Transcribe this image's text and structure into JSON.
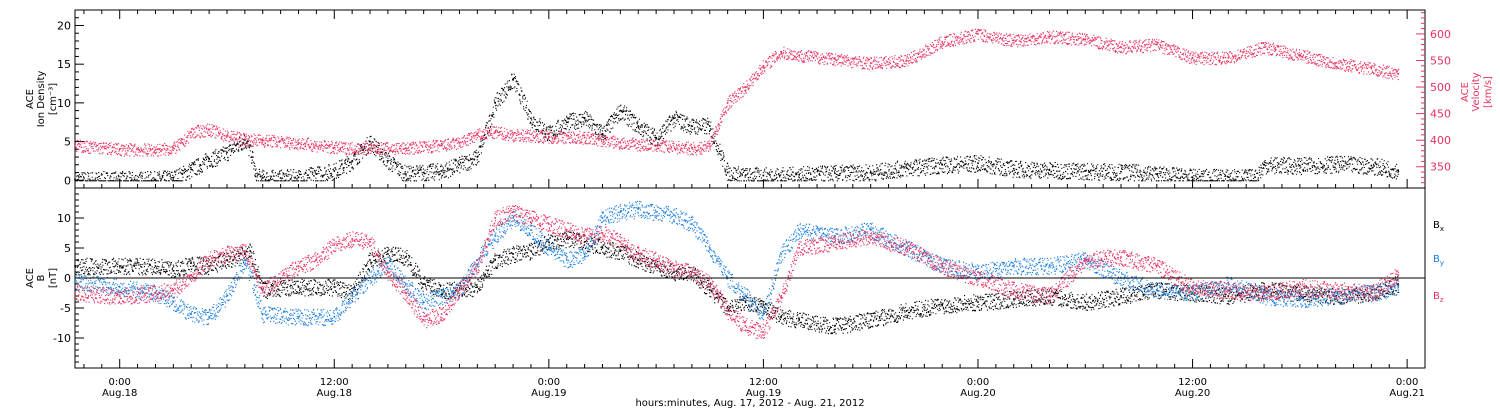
{
  "colors": {
    "black": "#000000",
    "pink": "#e8315f",
    "blue": "#1a7fe0"
  },
  "time_axis": {
    "ticks": [
      {
        "hour": 0,
        "top": "0:00",
        "bottom": "Aug.18"
      },
      {
        "hour": 12,
        "top": "12:00",
        "bottom": "Aug.18"
      },
      {
        "hour": 24,
        "top": "0:00",
        "bottom": "Aug.19"
      },
      {
        "hour": 36,
        "top": "12:00",
        "bottom": "Aug.19"
      },
      {
        "hour": 48,
        "top": "0:00",
        "bottom": "Aug.20"
      },
      {
        "hour": 60,
        "top": "12:00",
        "bottom": "Aug.20"
      },
      {
        "hour": 72,
        "top": "0:00",
        "bottom": "Aug.21"
      }
    ],
    "caption": "hours:minutes, Aug. 17, 2012 - Aug. 21, 2012"
  },
  "chart_data": [
    {
      "type": "scatter",
      "panel": "plasma",
      "xlim_hours": [
        -2.5,
        73
      ],
      "ylabel_left": {
        "line1": "ACE",
        "line2": "Ion Density",
        "line3": "[cm⁻³]"
      },
      "ylabel_right": {
        "line1": "ACE",
        "line2": "Velocity",
        "line3": "[km/s]"
      },
      "y_left": {
        "ylim": [
          -1,
          22
        ],
        "ticks": [
          0,
          5,
          10,
          15,
          20
        ]
      },
      "y_right": {
        "ylim": [
          310,
          645
        ],
        "ticks": [
          350,
          400,
          450,
          500,
          550,
          600
        ]
      },
      "series": [
        {
          "name": "Ion Density",
          "axis": "left",
          "color": "#000000",
          "x": [
            -2.5,
            0,
            2,
            3,
            3.5,
            4,
            4.5,
            5,
            5.5,
            6,
            6.5,
            7,
            7.4,
            7.6,
            8,
            9,
            10,
            11,
            12,
            13,
            14,
            15,
            16,
            17,
            18,
            19,
            20,
            21,
            22,
            23,
            24,
            25,
            26,
            27,
            28,
            29,
            30,
            31,
            32,
            33,
            34,
            35,
            36,
            38,
            40,
            42,
            44,
            46,
            48,
            50,
            52,
            54,
            56,
            58,
            60,
            62,
            63.5,
            64,
            66,
            68,
            70,
            71.5
          ],
          "y": [
            0.1,
            0.1,
            0.1,
            0.3,
            0.8,
            1.4,
            2.0,
            2.8,
            3.0,
            3.6,
            4.5,
            5.2,
            3.0,
            0.5,
            0.3,
            0.3,
            0.4,
            0.8,
            1.2,
            2.5,
            5.0,
            2.5,
            0.8,
            1.0,
            1.2,
            2.0,
            3.0,
            10.0,
            13.0,
            8.0,
            6.0,
            7.5,
            8.0,
            6.0,
            9.0,
            7.0,
            5.5,
            8.0,
            7.0,
            7.0,
            1.0,
            0.6,
            0.6,
            0.7,
            0.9,
            1.0,
            1.6,
            2.0,
            2.2,
            1.5,
            1.3,
            1.2,
            1.1,
            0.8,
            0.4,
            0.4,
            0.4,
            2.0,
            1.9,
            2.1,
            1.9,
            1.3
          ]
        },
        {
          "name": "Velocity",
          "axis": "right",
          "color": "#e8315f",
          "x": [
            -2.5,
            0,
            2,
            3,
            3.5,
            4,
            5,
            6,
            7,
            8,
            10,
            12,
            14,
            16,
            18,
            19,
            20,
            21,
            22,
            24,
            26,
            28,
            30,
            32,
            32.5,
            33,
            33.5,
            34,
            35,
            36,
            37,
            38,
            40,
            42,
            44,
            46,
            48,
            50,
            52,
            54,
            56,
            58,
            60,
            62,
            64,
            66,
            68,
            70,
            71.5
          ],
          "y": [
            390,
            383,
            382,
            385,
            395,
            415,
            420,
            408,
            402,
            400,
            395,
            386,
            385,
            385,
            390,
            395,
            410,
            415,
            410,
            407,
            405,
            395,
            390,
            385,
            385,
            393,
            430,
            470,
            500,
            540,
            565,
            560,
            553,
            545,
            550,
            585,
            600,
            588,
            595,
            590,
            575,
            580,
            555,
            555,
            575,
            560,
            545,
            535,
            525
          ]
        }
      ]
    },
    {
      "type": "scatter",
      "panel": "magnetic",
      "xlim_hours": [
        -2.5,
        73
      ],
      "ylabel_left": {
        "line1": "ACE",
        "line2": "B",
        "line3": "[nT]"
      },
      "ylim": [
        -15,
        15
      ],
      "yticks": [
        -10,
        -5,
        0,
        5,
        10
      ],
      "legend_placement": "right",
      "series": [
        {
          "name": "B",
          "subscript": "x",
          "color": "#000000",
          "x": [
            -2.5,
            0,
            2,
            3,
            4,
            5,
            6,
            7,
            7.3,
            8,
            10,
            12,
            13,
            14,
            15,
            16,
            17,
            18,
            19,
            20,
            21,
            22,
            23,
            24,
            25,
            26,
            27,
            28,
            29,
            30,
            31,
            32,
            33,
            34,
            35,
            36,
            37,
            38,
            40,
            42,
            44,
            46,
            48,
            50,
            52,
            54,
            56,
            58,
            60,
            62,
            64,
            66,
            68,
            70,
            71.5
          ],
          "y": [
            2,
            2,
            2,
            1.2,
            2.5,
            2.0,
            3.0,
            4.0,
            4.5,
            -2,
            -1.5,
            -1.5,
            -2.5,
            3.0,
            4.0,
            3.5,
            -1.0,
            -2.0,
            -2.0,
            -1.5,
            3.0,
            4.0,
            4.5,
            6.0,
            6.5,
            6.0,
            5.0,
            4.5,
            3.0,
            2.0,
            1.0,
            1.0,
            -2.0,
            -5.0,
            -4.0,
            -4.5,
            -6.5,
            -7.0,
            -8.0,
            -7.0,
            -5.5,
            -4.5,
            -4.0,
            -3.5,
            -3.0,
            -4.0,
            -3.0,
            -2.0,
            -2.5,
            -3.0,
            -2.0,
            -2.5,
            -3.0,
            -2.5,
            -1.0
          ]
        },
        {
          "name": "B",
          "subscript": "y",
          "color": "#1a7fe0",
          "x": [
            -2.5,
            0,
            2,
            3,
            4,
            5,
            6,
            7,
            8,
            10,
            12,
            13,
            14,
            15,
            16,
            17,
            18,
            19,
            20,
            21,
            22,
            23,
            24,
            25,
            26,
            27,
            28,
            29,
            30,
            31,
            32,
            33,
            34,
            35,
            36,
            37,
            38,
            40,
            42,
            44,
            46,
            48,
            50,
            52,
            54,
            56,
            58,
            60,
            62,
            64,
            66,
            68,
            70,
            71.5
          ],
          "y": [
            -0.5,
            -1.5,
            -2.5,
            -4.0,
            -6.0,
            -6.5,
            -3.0,
            3.0,
            -6.0,
            -6.5,
            -6.5,
            -3.0,
            0.0,
            2.5,
            -1.0,
            -4.0,
            -3.0,
            -2.0,
            3.0,
            7.0,
            10.0,
            8.0,
            5.0,
            3.0,
            4.0,
            10.0,
            11.0,
            11.5,
            11.0,
            10.5,
            9.0,
            5.0,
            0.0,
            -3.0,
            -6.0,
            4.0,
            8.0,
            7.0,
            8.0,
            5.0,
            2.0,
            1.0,
            2.0,
            2.0,
            3.0,
            0.0,
            -2.0,
            -2.5,
            -1.0,
            -3.0,
            -3.5,
            -3.0,
            -2.5,
            -1.5
          ]
        },
        {
          "name": "B",
          "subscript": "z",
          "color": "#e8315f",
          "x": [
            -2.5,
            0,
            2,
            3,
            4,
            5,
            6,
            7,
            8,
            9,
            10,
            11,
            12,
            13,
            14,
            15,
            16,
            17,
            18,
            19,
            20,
            21,
            22,
            23,
            24,
            25,
            26,
            27,
            28,
            29,
            30,
            31,
            32,
            33,
            33.5,
            34,
            35,
            36,
            37,
            38,
            40,
            42,
            44,
            46,
            48,
            50,
            52,
            54,
            56,
            58,
            60,
            62,
            64,
            66,
            68,
            70,
            71.5
          ],
          "y": [
            -2.5,
            -3.0,
            -2.5,
            -2.0,
            0.5,
            3.0,
            4.0,
            4.5,
            -2.0,
            0.0,
            2.0,
            3.0,
            5.5,
            6.5,
            6.0,
            1.0,
            -2.5,
            -7.0,
            -6.0,
            -2.0,
            2.0,
            10.0,
            11.0,
            10.0,
            9.0,
            8.0,
            7.0,
            7.5,
            6.0,
            4.0,
            3.0,
            1.5,
            1.0,
            -1.0,
            -3.0,
            -5.5,
            -8.0,
            -9.0,
            -3.0,
            5.0,
            6.0,
            7.0,
            5.0,
            2.0,
            0.0,
            -2.0,
            -3.0,
            3.0,
            3.5,
            2.0,
            -1.5,
            -2.0,
            -2.5,
            -1.5,
            -2.0,
            -2.5,
            0.5
          ]
        }
      ]
    }
  ]
}
